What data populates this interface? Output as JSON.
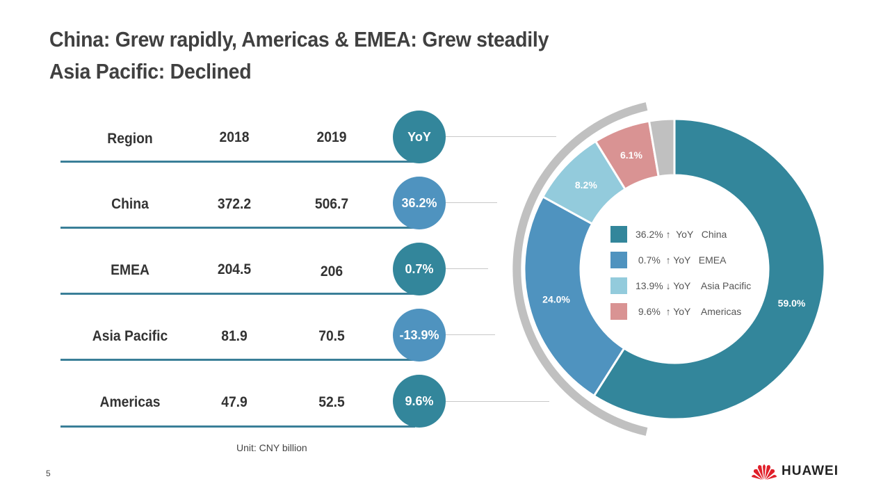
{
  "title": {
    "line1": "China: Grew rapidly, Americas & EMEA: Grew steadily",
    "line2": "Asia Pacific: Declined"
  },
  "table": {
    "headers": [
      "Region",
      "2018",
      "2019",
      "YoY"
    ],
    "rows": [
      {
        "region": "China",
        "y2018": "372.2",
        "y2019": "506.7",
        "yoy": "36.2%"
      },
      {
        "region": "EMEA",
        "y2018": "204.5",
        "y2019": "206",
        "yoy": "0.7%"
      },
      {
        "region": "Asia Pacific",
        "y2018": "81.9",
        "y2019": "70.5",
        "yoy": "-13.9%"
      },
      {
        "region": "Americas",
        "y2018": "47.9",
        "y2019": "52.5",
        "yoy": "9.6%"
      }
    ],
    "unit": "Unit: CNY billion"
  },
  "colors": {
    "dark_teal": "#33869b",
    "mid_blue": "#4f93bf",
    "light_blue": "#93cbdc",
    "pink": "#d99393",
    "grey": "#c0c0c0",
    "text": "#333333"
  },
  "chart_data": {
    "type": "pie",
    "variant": "donut",
    "title": "",
    "slices": [
      {
        "name": "China",
        "value": 59.0,
        "label": "59.0%",
        "color": "#33869b"
      },
      {
        "name": "EMEA",
        "value": 24.0,
        "label": "24.0%",
        "color": "#4f93bf"
      },
      {
        "name": "Asia Pacific",
        "value": 8.2,
        "label": "8.2%",
        "color": "#93cbdc"
      },
      {
        "name": "Americas",
        "value": 6.1,
        "label": "6.1%",
        "color": "#d99393"
      },
      {
        "name": "Other",
        "value": 2.7,
        "label": "",
        "color": "#c0c0c0"
      }
    ],
    "legend": [
      {
        "text": "36.2% ↑  YoY   China",
        "color": "#33869b"
      },
      {
        "text": " 0.7%  ↑ YoY   EMEA",
        "color": "#4f93bf"
      },
      {
        "text": "13.9% ↓ YoY    Asia Pacific",
        "color": "#93cbdc"
      },
      {
        "text": " 9.6%  ↑ YoY    Americas",
        "color": "#d99393"
      }
    ],
    "legend_placement": "center"
  },
  "footer": {
    "page_number": "5",
    "brand": "HUAWEI"
  }
}
